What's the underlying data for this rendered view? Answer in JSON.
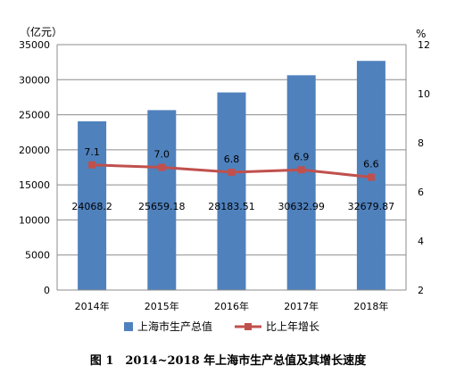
{
  "caption": "图 1　2014~2018 年上海市生产总值及其增长速度",
  "chart_data": {
    "type": "bar",
    "categories": [
      "2014年",
      "2015年",
      "2016年",
      "2017年",
      "2018年"
    ],
    "y_left": {
      "unit_label": "（亿元）",
      "ylim": [
        0,
        35000
      ],
      "ticks": [
        "0",
        "5000",
        "10000",
        "15000",
        "20000",
        "25000",
        "30000",
        "35000"
      ]
    },
    "y_right": {
      "unit_label": "%",
      "ylim": [
        2,
        12
      ],
      "ticks": [
        "2",
        "4",
        "6",
        "8",
        "10",
        "12"
      ]
    },
    "series": [
      {
        "name": "上海市生产总值",
        "type": "bar",
        "axis": "left",
        "color": "#4f81bd",
        "values": [
          24068.2,
          25659.18,
          28183.51,
          30632.99,
          32679.87
        ],
        "labels": [
          "24068.2",
          "25659.18",
          "28183.51",
          "30632.99",
          "32679.87"
        ]
      },
      {
        "name": "比上年增长",
        "type": "line",
        "axis": "right",
        "color": "#c0504d",
        "values": [
          7.1,
          7.0,
          6.8,
          6.9,
          6.6
        ],
        "labels": [
          "7.1",
          "7.0",
          "6.8",
          "6.9",
          "6.6"
        ]
      }
    ],
    "grid": true,
    "legend_position": "bottom"
  }
}
